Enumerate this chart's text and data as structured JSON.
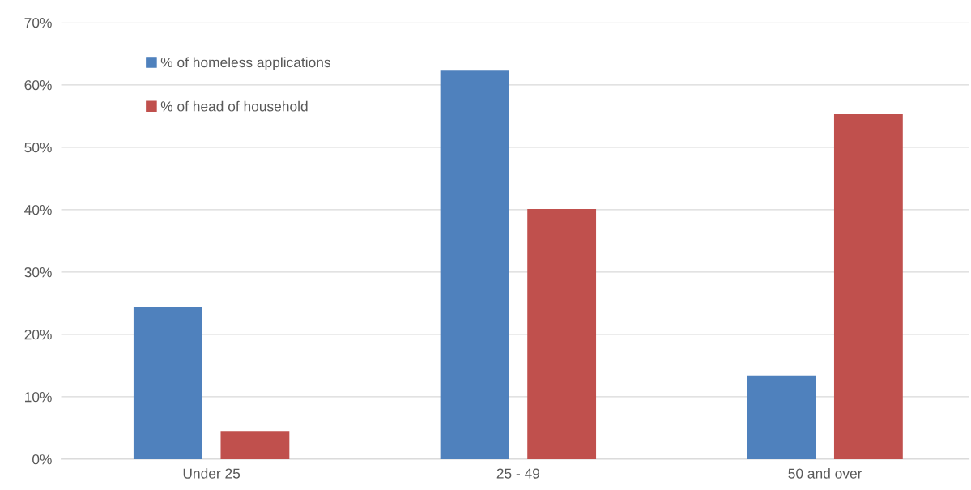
{
  "chart_data": {
    "type": "bar",
    "categories": [
      "Under 25",
      "25 - 49",
      "50 and over"
    ],
    "series": [
      {
        "name": "% of homeless applications",
        "color": "#4f81bd",
        "values": [
          24.4,
          62.3,
          13.4
        ]
      },
      {
        "name": "% of head of household",
        "color": "#c0504d",
        "values": [
          4.5,
          40.1,
          55.3
        ]
      }
    ],
    "ylim": [
      0,
      70
    ],
    "yticks": [
      {
        "value": 0,
        "label": "0%"
      },
      {
        "value": 10,
        "label": "10%"
      },
      {
        "value": 20,
        "label": "20%"
      },
      {
        "value": 30,
        "label": "30%"
      },
      {
        "value": 40,
        "label": "40%"
      },
      {
        "value": 50,
        "label": "50%"
      },
      {
        "value": 60,
        "label": "60%"
      },
      {
        "value": 70,
        "label": "70%"
      }
    ],
    "grid": "y",
    "legend": "top left"
  }
}
